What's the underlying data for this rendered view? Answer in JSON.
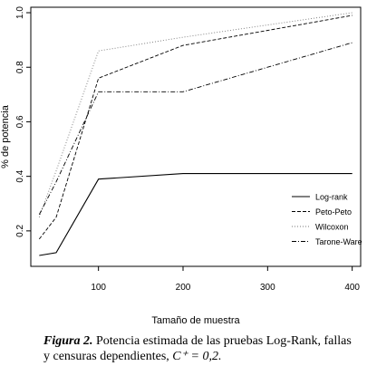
{
  "chart_data": {
    "type": "line",
    "title": "",
    "xlabel": "Tamaño de muestra",
    "ylabel": "% de potencia",
    "x": [
      30,
      50,
      100,
      200,
      400
    ],
    "xticks": [
      "100",
      "200",
      "300",
      "400"
    ],
    "xtick_values": [
      100,
      200,
      300,
      400
    ],
    "yticks": [
      "0.2",
      "0.4",
      "0.6",
      "0.8",
      "1.0"
    ],
    "ytick_values": [
      0.2,
      0.4,
      0.6,
      0.8,
      1.0
    ],
    "xlim": [
      20,
      410
    ],
    "ylim": [
      0.07,
      1.02
    ],
    "grid": false,
    "legend_position": "bottom-right",
    "series": [
      {
        "name": "Log-rank",
        "style": "solid",
        "values": [
          0.11,
          0.12,
          0.39,
          0.41,
          0.41
        ]
      },
      {
        "name": "Peto-Peto",
        "style": "dashed",
        "values": [
          0.17,
          0.25,
          0.76,
          0.88,
          0.99
        ]
      },
      {
        "name": "Wilcoxon",
        "style": "dotted",
        "values": [
          0.25,
          0.42,
          0.86,
          0.91,
          1.0
        ]
      },
      {
        "name": "Tarone-Ware",
        "style": "dashdot",
        "values": [
          0.26,
          0.38,
          0.71,
          0.71,
          0.89
        ]
      }
    ]
  },
  "caption": {
    "label": "Figura 2.",
    "text": " Potencia estimada de las pruebas Log-Rank, fallas y censuras dependientes, ",
    "math": "C⁺ = 0,2."
  }
}
